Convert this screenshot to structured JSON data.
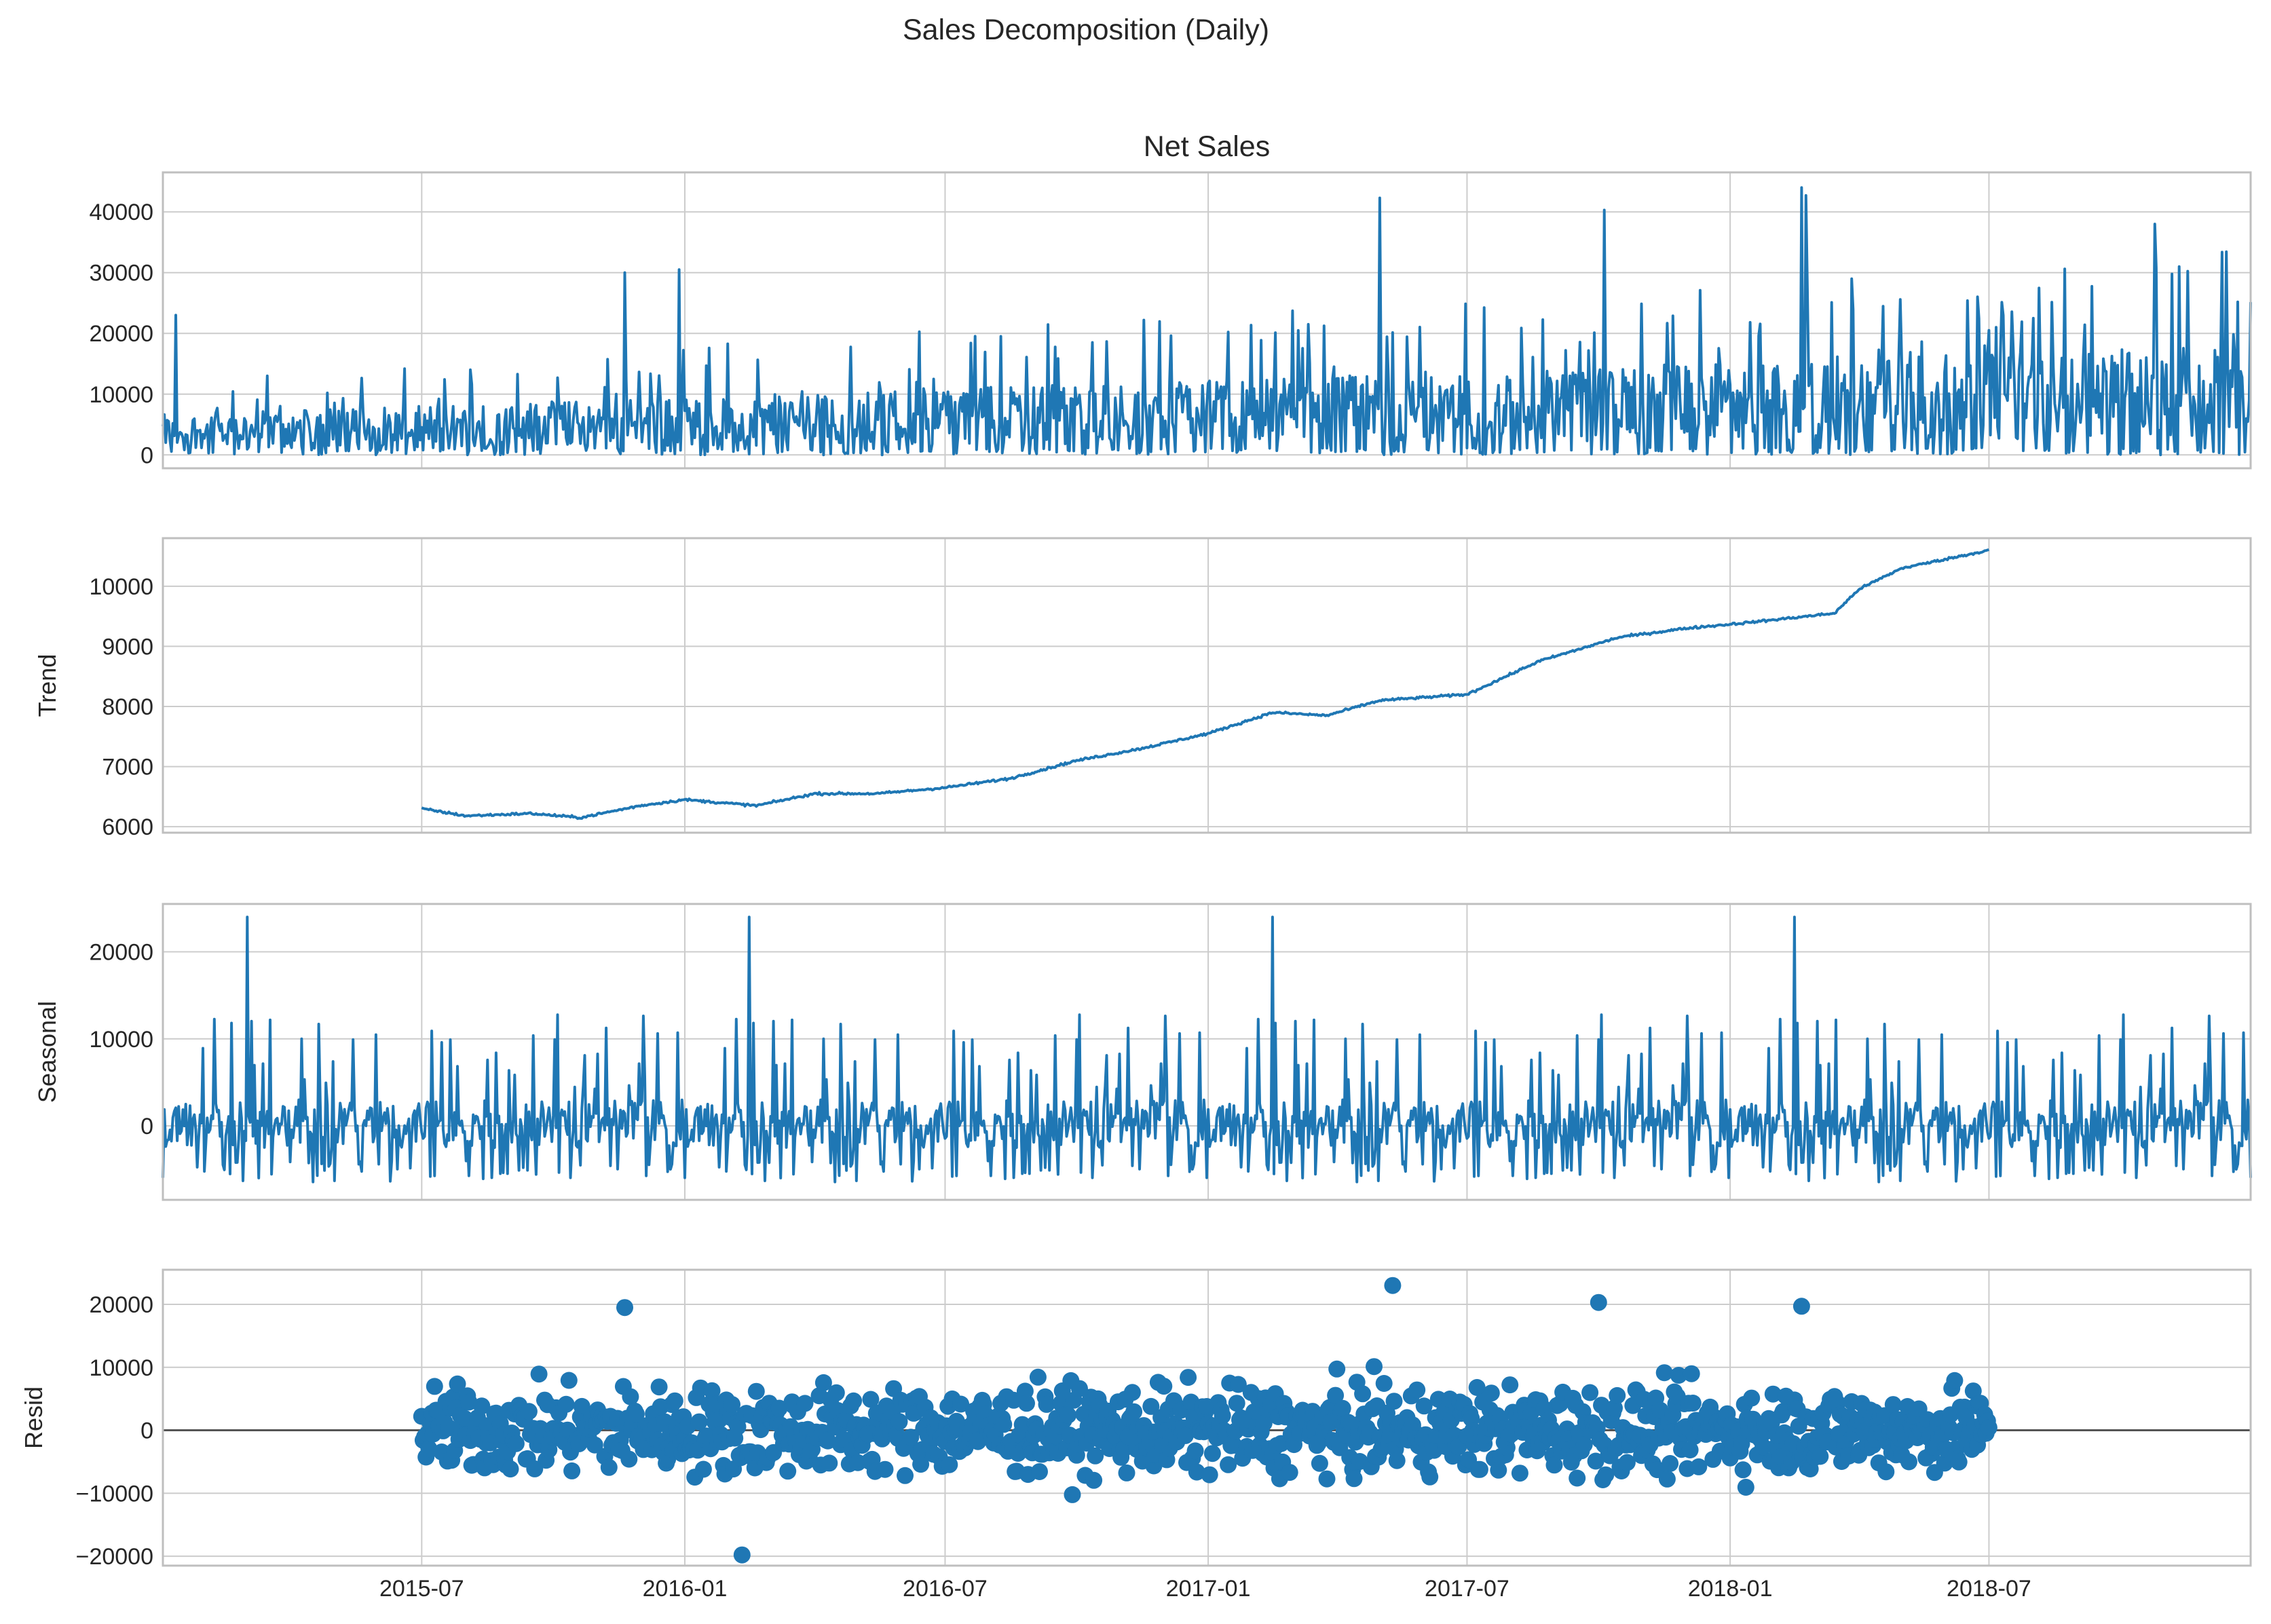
{
  "title": "Sales Decomposition (Daily)",
  "colors": {
    "series": "#1f77b4",
    "grid": "#cccccc",
    "frame": "#bfbfbf",
    "zero_line": "#555555"
  },
  "x_axis": {
    "range": [
      "2015-01-01",
      "2018-12-31"
    ],
    "ticks": [
      "2015-07",
      "2016-01",
      "2016-07",
      "2017-01",
      "2017-07",
      "2018-01",
      "2018-07"
    ]
  },
  "chart_data": [
    {
      "id": "observed",
      "type": "line",
      "title": "Net Sales",
      "ylabel": "",
      "ylim": [
        -2200,
        46500
      ],
      "yticks": [
        0,
        10000,
        20000,
        30000,
        40000
      ],
      "grid": true,
      "x_range": [
        "2015-01-01",
        "2018-12-31"
      ],
      "notable_values": [
        {
          "date": "2015-01-10",
          "value": 23000
        },
        {
          "date": "2015-11-20",
          "value": 30000
        },
        {
          "date": "2015-12-28",
          "value": 30500
        },
        {
          "date": "2017-05-01",
          "value": 42300
        },
        {
          "date": "2017-10-05",
          "value": 40300
        },
        {
          "date": "2018-02-20",
          "value": 44000
        },
        {
          "date": "2018-02-23",
          "value": 42700
        },
        {
          "date": "2018-10-25",
          "value": 38000
        }
      ]
    },
    {
      "id": "trend",
      "type": "line",
      "title": "",
      "ylabel": "Trend",
      "ylim": [
        5900,
        10800
      ],
      "yticks": [
        6000,
        7000,
        8000,
        9000,
        10000
      ],
      "grid": true,
      "x_range": [
        "2015-07-01",
        "2018-07-01"
      ],
      "points": [
        {
          "x": "2015-07-01",
          "y": 6300
        },
        {
          "x": "2015-08-01",
          "y": 6180
        },
        {
          "x": "2015-09-15",
          "y": 6220
        },
        {
          "x": "2015-10-20",
          "y": 6150
        },
        {
          "x": "2015-12-01",
          "y": 6350
        },
        {
          "x": "2016-01-01",
          "y": 6450
        },
        {
          "x": "2016-02-20",
          "y": 6350
        },
        {
          "x": "2016-04-01",
          "y": 6550
        },
        {
          "x": "2016-05-15",
          "y": 6550
        },
        {
          "x": "2016-07-01",
          "y": 6650
        },
        {
          "x": "2016-08-15",
          "y": 6800
        },
        {
          "x": "2016-10-01",
          "y": 7100
        },
        {
          "x": "2016-11-15",
          "y": 7300
        },
        {
          "x": "2017-01-01",
          "y": 7550
        },
        {
          "x": "2017-02-15",
          "y": 7900
        },
        {
          "x": "2017-03-25",
          "y": 7850
        },
        {
          "x": "2017-05-01",
          "y": 8100
        },
        {
          "x": "2017-07-01",
          "y": 8200
        },
        {
          "x": "2017-08-20",
          "y": 8750
        },
        {
          "x": "2017-10-15",
          "y": 9150
        },
        {
          "x": "2017-12-01",
          "y": 9300
        },
        {
          "x": "2018-01-15",
          "y": 9400
        },
        {
          "x": "2018-03-15",
          "y": 9550
        },
        {
          "x": "2018-04-01",
          "y": 9950
        },
        {
          "x": "2018-05-01",
          "y": 10300
        },
        {
          "x": "2018-07-01",
          "y": 10600
        }
      ]
    },
    {
      "id": "seasonal",
      "type": "line",
      "title": "",
      "ylabel": "Seasonal",
      "ylim": [
        -8500,
        25500
      ],
      "yticks": [
        0,
        10000,
        20000
      ],
      "grid": true,
      "x_range": [
        "2015-01-01",
        "2018-12-31"
      ],
      "notable_values": [
        {
          "date": "2015-03-01",
          "value": 24000
        },
        {
          "date": "2016-02-15",
          "value": 24000
        },
        {
          "date": "2017-02-15",
          "value": 24000
        },
        {
          "date": "2018-02-15",
          "value": 24000
        }
      ]
    },
    {
      "id": "resid",
      "type": "scatter",
      "title": "",
      "ylabel": "Resid",
      "ylim": [
        -21500,
        25500
      ],
      "yticks": [
        -20000,
        -10000,
        0,
        10000,
        20000
      ],
      "grid": true,
      "zero_line": true,
      "x_range": [
        "2015-07-01",
        "2018-07-01"
      ],
      "notable_values": [
        {
          "date": "2015-11-20",
          "value": 19500
        },
        {
          "date": "2016-02-10",
          "value": -19800
        },
        {
          "date": "2017-05-10",
          "value": 23000
        },
        {
          "date": "2017-10-01",
          "value": 20300
        },
        {
          "date": "2018-02-20",
          "value": 19700
        }
      ]
    }
  ]
}
